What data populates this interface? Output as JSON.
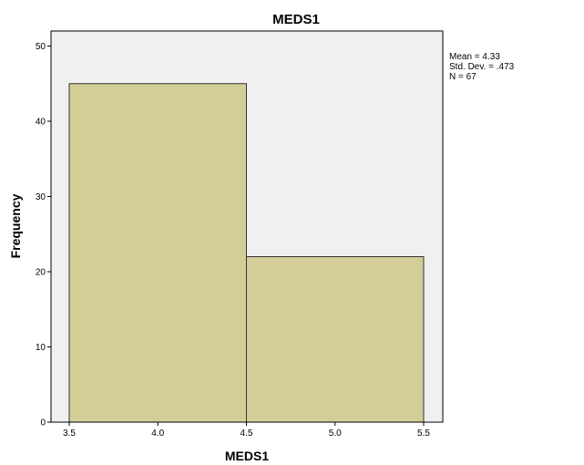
{
  "chart_data": {
    "type": "bar",
    "title": "MEDS1",
    "xlabel": "MEDS1",
    "ylabel": "Frequency",
    "xlim": [
      3.5,
      5.5
    ],
    "ylim": [
      0,
      52
    ],
    "xticks": [
      "3.5",
      "4.0",
      "4.5",
      "5.0",
      "5.5"
    ],
    "yticks": [
      "0",
      "10",
      "20",
      "30",
      "40",
      "50"
    ],
    "bins": [
      {
        "start": 3.5,
        "end": 4.5,
        "value": 45
      },
      {
        "start": 4.5,
        "end": 5.5,
        "value": 22
      }
    ],
    "stats": [
      "Mean = 4.33",
      "Std. Dev. = .473",
      "N = 67"
    ],
    "legend_position": "top-right",
    "grid": false
  },
  "colors": {
    "plot_background": "#f0f0f0",
    "bar_fill": "#d3ce98",
    "bar_stroke": "#333333",
    "axis": "#000000"
  }
}
